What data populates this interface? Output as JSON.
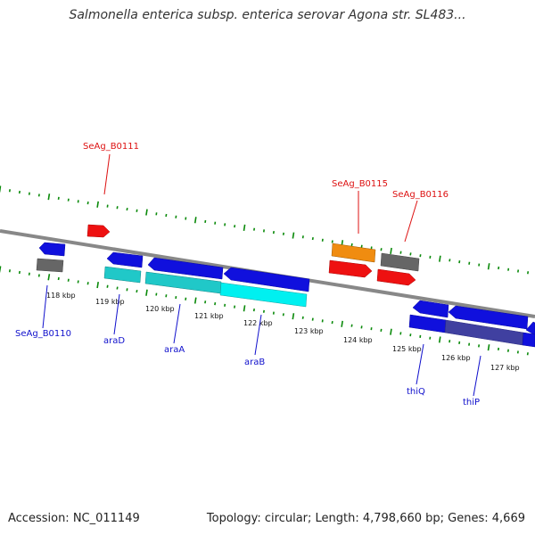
{
  "title": "Salmonella enterica subsp. enterica serovar Agona str. SL483...",
  "footer": {
    "accession": "Accession: NC_011149",
    "stats": "Topology: circular; Length: 4,798,660 bp; Genes: 4,669"
  },
  "colors": {
    "backbone": "#888888",
    "ticks": "#0a8a0a",
    "forward_gene": "#1010dd",
    "cds_forward": "#20c8c8",
    "cds_forward_light": "#00f0f0",
    "pseudo_gene": "#666666",
    "red_gene": "#ee1111",
    "orange_gene": "#f08c10",
    "thiP_overlap": "#4040a0",
    "gene_label_blue": "#1010cc",
    "gene_label_red": "#dd1111"
  },
  "scale": {
    "labels": [
      "118 kbp",
      "119 kbp",
      "120 kbp",
      "121 kbp",
      "122 kbp",
      "123 kbp",
      "124 kbp",
      "125 kbp",
      "126 kbp",
      "127 kbp"
    ]
  },
  "gene_labels": {
    "SeAg_B0110": "SeAg_B0110",
    "araD": "araD",
    "araA": "araA",
    "araB": "araB",
    "thiQ": "thiQ",
    "thiP": "thiP",
    "SeAg_B0111": "SeAg_B0111",
    "SeAg_B0115": "SeAg_B0115",
    "SeAg_B0116": "SeAg_B0116"
  }
}
